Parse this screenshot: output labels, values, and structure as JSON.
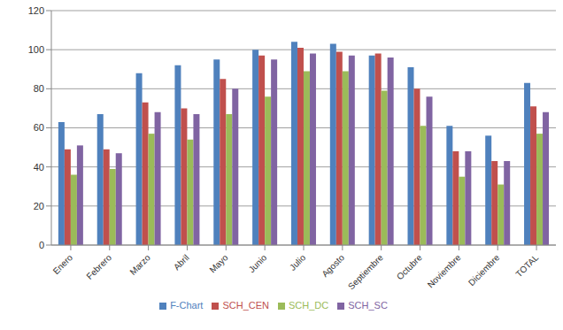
{
  "chart_data": {
    "type": "bar",
    "categories": [
      "Enero",
      "Febrero",
      "Marzo",
      "Abril",
      "Mayo",
      "Junio",
      "Julio",
      "Agosto",
      "Septiembre",
      "Octubre",
      "Noviembre",
      "Diciembre",
      "TOTAL"
    ],
    "series": [
      {
        "name": "F-Chart",
        "color": "#4f81bd",
        "values": [
          63,
          67,
          88,
          92,
          95,
          100,
          104,
          103,
          97,
          91,
          61,
          56,
          83
        ]
      },
      {
        "name": "SCH_CEN",
        "color": "#c0504d",
        "values": [
          49,
          49,
          73,
          70,
          85,
          97,
          101,
          99,
          98,
          80,
          48,
          43,
          71
        ]
      },
      {
        "name": "SCH_DC",
        "color": "#9bbb59",
        "values": [
          36,
          39,
          57,
          54,
          67,
          76,
          89,
          89,
          79,
          61,
          35,
          31,
          57
        ]
      },
      {
        "name": "SCH_SC",
        "color": "#8064a2",
        "values": [
          51,
          47,
          68,
          67,
          80,
          95,
          98,
          97,
          96,
          76,
          48,
          43,
          68
        ]
      }
    ],
    "ylim": [
      0,
      120
    ],
    "yticks": [
      0,
      20,
      40,
      60,
      80,
      100,
      120
    ],
    "grid": true,
    "legend": "bottom"
  }
}
